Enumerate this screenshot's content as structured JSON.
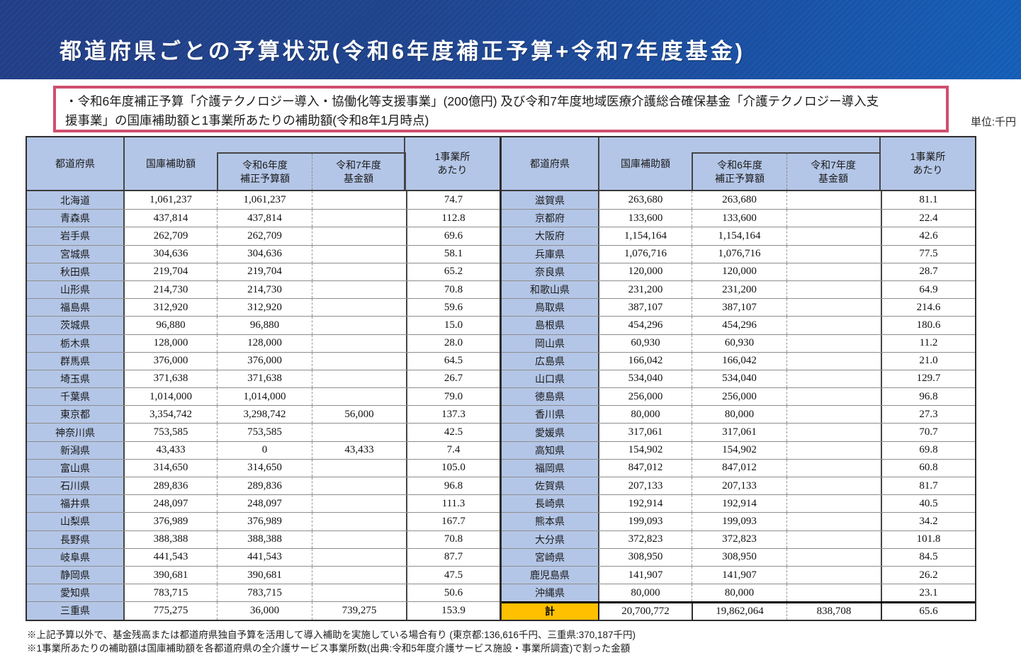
{
  "header": {
    "title": "都道府県ごとの予算状況(令和6年度補正予算+令和7年度基金)"
  },
  "note": {
    "lines": [
      "・令和6年度補正予算「介護テクノロジー導入・協働化等支援事業」(200億円) 及び令和7年度地域医療介護総合確保基金「介護テクノロジー導入支",
      "援事業」の国庫補助額と1事業所あたりの補助額(令和8年1月時点)"
    ]
  },
  "unit_label": "単位:千円",
  "columns": {
    "prefecture": "都道府県",
    "subsidy": "国庫補助額",
    "r6_line1": "令和6年度",
    "r6_line2": "補正予算額",
    "r7_line1": "令和7年度",
    "r7_line2": "基金額",
    "per_line1": "1事業所",
    "per_line2": "あたり"
  },
  "colors": {
    "band_blue_dark": "#23408a",
    "band_blue_light": "#1560ba",
    "note_border": "#cf4f6e",
    "header_fill": "#b4c6e7",
    "total_fill": "#ffc000"
  },
  "left_table": {
    "rows": [
      {
        "pref": "北海道",
        "subsidy": "1,061,237",
        "r6": "1,061,237",
        "r7": "",
        "per": "74.7"
      },
      {
        "pref": "青森県",
        "subsidy": "437,814",
        "r6": "437,814",
        "r7": "",
        "per": "112.8"
      },
      {
        "pref": "岩手県",
        "subsidy": "262,709",
        "r6": "262,709",
        "r7": "",
        "per": "69.6"
      },
      {
        "pref": "宮城県",
        "subsidy": "304,636",
        "r6": "304,636",
        "r7": "",
        "per": "58.1"
      },
      {
        "pref": "秋田県",
        "subsidy": "219,704",
        "r6": "219,704",
        "r7": "",
        "per": "65.2"
      },
      {
        "pref": "山形県",
        "subsidy": "214,730",
        "r6": "214,730",
        "r7": "",
        "per": "70.8"
      },
      {
        "pref": "福島県",
        "subsidy": "312,920",
        "r6": "312,920",
        "r7": "",
        "per": "59.6"
      },
      {
        "pref": "茨城県",
        "subsidy": "96,880",
        "r6": "96,880",
        "r7": "",
        "per": "15.0"
      },
      {
        "pref": "栃木県",
        "subsidy": "128,000",
        "r6": "128,000",
        "r7": "",
        "per": "28.0"
      },
      {
        "pref": "群馬県",
        "subsidy": "376,000",
        "r6": "376,000",
        "r7": "",
        "per": "64.5"
      },
      {
        "pref": "埼玉県",
        "subsidy": "371,638",
        "r6": "371,638",
        "r7": "",
        "per": "26.7"
      },
      {
        "pref": "千葉県",
        "subsidy": "1,014,000",
        "r6": "1,014,000",
        "r7": "",
        "per": "79.0"
      },
      {
        "pref": "東京都",
        "subsidy": "3,354,742",
        "r6": "3,298,742",
        "r7": "56,000",
        "per": "137.3"
      },
      {
        "pref": "神奈川県",
        "subsidy": "753,585",
        "r6": "753,585",
        "r7": "",
        "per": "42.5"
      },
      {
        "pref": "新潟県",
        "subsidy": "43,433",
        "r6": "0",
        "r7": "43,433",
        "per": "7.4"
      },
      {
        "pref": "富山県",
        "subsidy": "314,650",
        "r6": "314,650",
        "r7": "",
        "per": "105.0"
      },
      {
        "pref": "石川県",
        "subsidy": "289,836",
        "r6": "289,836",
        "r7": "",
        "per": "96.8"
      },
      {
        "pref": "福井県",
        "subsidy": "248,097",
        "r6": "248,097",
        "r7": "",
        "per": "111.3"
      },
      {
        "pref": "山梨県",
        "subsidy": "376,989",
        "r6": "376,989",
        "r7": "",
        "per": "167.7"
      },
      {
        "pref": "長野県",
        "subsidy": "388,388",
        "r6": "388,388",
        "r7": "",
        "per": "70.8"
      },
      {
        "pref": "岐阜県",
        "subsidy": "441,543",
        "r6": "441,543",
        "r7": "",
        "per": "87.7"
      },
      {
        "pref": "静岡県",
        "subsidy": "390,681",
        "r6": "390,681",
        "r7": "",
        "per": "47.5"
      },
      {
        "pref": "愛知県",
        "subsidy": "783,715",
        "r6": "783,715",
        "r7": "",
        "per": "50.6"
      },
      {
        "pref": "三重県",
        "subsidy": "775,275",
        "r6": "36,000",
        "r7": "739,275",
        "per": "153.9"
      }
    ]
  },
  "right_table": {
    "rows": [
      {
        "pref": "滋賀県",
        "subsidy": "263,680",
        "r6": "263,680",
        "r7": "",
        "per": "81.1"
      },
      {
        "pref": "京都府",
        "subsidy": "133,600",
        "r6": "133,600",
        "r7": "",
        "per": "22.4"
      },
      {
        "pref": "大阪府",
        "subsidy": "1,154,164",
        "r6": "1,154,164",
        "r7": "",
        "per": "42.6"
      },
      {
        "pref": "兵庫県",
        "subsidy": "1,076,716",
        "r6": "1,076,716",
        "r7": "",
        "per": "77.5"
      },
      {
        "pref": "奈良県",
        "subsidy": "120,000",
        "r6": "120,000",
        "r7": "",
        "per": "28.7"
      },
      {
        "pref": "和歌山県",
        "subsidy": "231,200",
        "r6": "231,200",
        "r7": "",
        "per": "64.9"
      },
      {
        "pref": "鳥取県",
        "subsidy": "387,107",
        "r6": "387,107",
        "r7": "",
        "per": "214.6"
      },
      {
        "pref": "島根県",
        "subsidy": "454,296",
        "r6": "454,296",
        "r7": "",
        "per": "180.6"
      },
      {
        "pref": "岡山県",
        "subsidy": "60,930",
        "r6": "60,930",
        "r7": "",
        "per": "11.2"
      },
      {
        "pref": "広島県",
        "subsidy": "166,042",
        "r6": "166,042",
        "r7": "",
        "per": "21.0"
      },
      {
        "pref": "山口県",
        "subsidy": "534,040",
        "r6": "534,040",
        "r7": "",
        "per": "129.7"
      },
      {
        "pref": "徳島県",
        "subsidy": "256,000",
        "r6": "256,000",
        "r7": "",
        "per": "96.8"
      },
      {
        "pref": "香川県",
        "subsidy": "80,000",
        "r6": "80,000",
        "r7": "",
        "per": "27.3"
      },
      {
        "pref": "愛媛県",
        "subsidy": "317,061",
        "r6": "317,061",
        "r7": "",
        "per": "70.7"
      },
      {
        "pref": "高知県",
        "subsidy": "154,902",
        "r6": "154,902",
        "r7": "",
        "per": "69.8"
      },
      {
        "pref": "福岡県",
        "subsidy": "847,012",
        "r6": "847,012",
        "r7": "",
        "per": "60.8"
      },
      {
        "pref": "佐賀県",
        "subsidy": "207,133",
        "r6": "207,133",
        "r7": "",
        "per": "81.7"
      },
      {
        "pref": "長崎県",
        "subsidy": "192,914",
        "r6": "192,914",
        "r7": "",
        "per": "40.5"
      },
      {
        "pref": "熊本県",
        "subsidy": "199,093",
        "r6": "199,093",
        "r7": "",
        "per": "34.2"
      },
      {
        "pref": "大分県",
        "subsidy": "372,823",
        "r6": "372,823",
        "r7": "",
        "per": "101.8"
      },
      {
        "pref": "宮崎県",
        "subsidy": "308,950",
        "r6": "308,950",
        "r7": "",
        "per": "84.5"
      },
      {
        "pref": "鹿児島県",
        "subsidy": "141,907",
        "r6": "141,907",
        "r7": "",
        "per": "26.2"
      },
      {
        "pref": "沖縄県",
        "subsidy": "80,000",
        "r6": "80,000",
        "r7": "",
        "per": "23.1"
      },
      {
        "pref": "計",
        "total": true,
        "subsidy": "20,700,772",
        "r6": "19,862,064",
        "r7": "838,708",
        "per": "65.6"
      }
    ]
  },
  "footnotes": [
    "※上記予算以外で、基金残高または都道府県独自予算を活用して導入補助を実施している場合有り (東京都:136,616千円、三重県:370,187千円)",
    "※1事業所あたりの補助額は国庫補助額を各都道府県の全介護サービス事業所数(出典:令和5年度介護サービス施設・事業所調査)で割った金額"
  ]
}
